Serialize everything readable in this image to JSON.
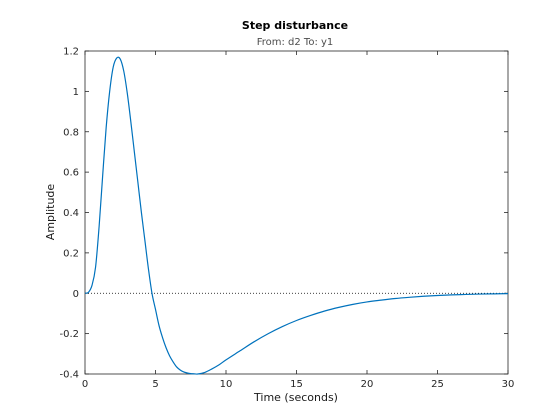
{
  "chart_data": {
    "type": "line",
    "title": "Step disturbance",
    "subtitle": "From: d2  To: y1",
    "xlabel": "Time (seconds)",
    "ylabel": "Amplitude",
    "xlim": [
      0,
      30
    ],
    "ylim": [
      -0.4,
      1.2
    ],
    "xticks": [
      0,
      5,
      10,
      15,
      20,
      25,
      30
    ],
    "yticks": [
      -0.4,
      -0.2,
      0,
      0.2,
      0.4,
      0.6,
      0.8,
      1,
      1.2
    ],
    "xtick_labels": [
      "0",
      "5",
      "10",
      "15",
      "20",
      "25",
      "30"
    ],
    "ytick_labels": [
      "-0.4",
      "-0.2",
      "0",
      "0.2",
      "0.4",
      "0.6",
      "0.8",
      "1",
      "1.2"
    ],
    "grid": false,
    "reference_line": {
      "y": 0,
      "style": "dotted",
      "color": "#000000"
    },
    "series": [
      {
        "color": "#0072bd",
        "x": [
          0,
          0.25,
          0.5,
          0.75,
          1.0,
          1.25,
          1.5,
          1.75,
          2.0,
          2.25,
          2.5,
          2.75,
          3.0,
          3.25,
          3.5,
          3.75,
          4.0,
          4.25,
          4.5,
          4.75,
          5.0,
          5.25,
          5.5,
          5.75,
          6.0,
          6.25,
          6.5,
          6.75,
          7.0,
          7.25,
          7.5,
          7.75,
          8.0,
          8.5,
          9.0,
          9.5,
          10.0,
          11.0,
          12.0,
          13.0,
          14.0,
          15.0,
          16.0,
          17.0,
          18.0,
          19.0,
          20.0,
          21.0,
          22.0,
          23.0,
          24.0,
          25.0,
          26.0,
          27.0,
          28.0,
          29.0,
          30.0
        ],
        "y": [
          0,
          0.005,
          0.04,
          0.13,
          0.33,
          0.58,
          0.82,
          1.0,
          1.12,
          1.165,
          1.16,
          1.1,
          0.99,
          0.85,
          0.7,
          0.55,
          0.4,
          0.26,
          0.12,
          0.0,
          -0.08,
          -0.16,
          -0.22,
          -0.27,
          -0.31,
          -0.34,
          -0.365,
          -0.38,
          -0.39,
          -0.395,
          -0.398,
          -0.399,
          -0.4,
          -0.392,
          -0.375,
          -0.355,
          -0.33,
          -0.285,
          -0.24,
          -0.2,
          -0.165,
          -0.135,
          -0.11,
          -0.088,
          -0.07,
          -0.055,
          -0.043,
          -0.034,
          -0.026,
          -0.02,
          -0.015,
          -0.011,
          -0.008,
          -0.006,
          -0.004,
          -0.003,
          -0.002
        ]
      }
    ]
  }
}
